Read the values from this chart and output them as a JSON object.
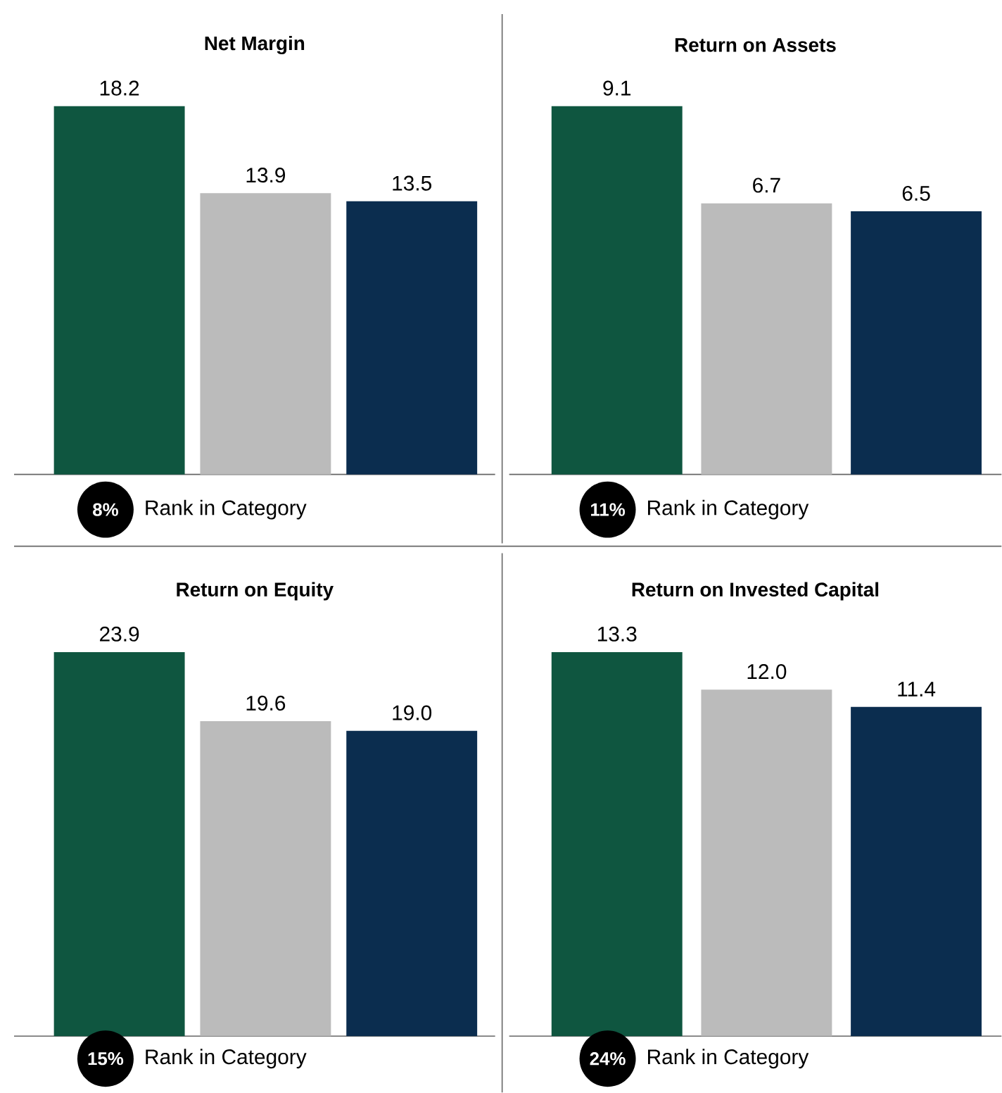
{
  "chart_data": [
    {
      "type": "bar",
      "title": "Net Margin",
      "categories": [
        null,
        null,
        null
      ],
      "values": [
        18.2,
        13.9,
        13.5
      ],
      "colors": [
        "#0f5640",
        "#bbbbbb",
        "#0b2d4f"
      ],
      "value_labels": [
        "18.2",
        "13.9",
        "13.5"
      ],
      "annotations": [
        "8%",
        "Rank in Category"
      ]
    },
    {
      "type": "bar",
      "title": "Return on Assets",
      "categories": [
        null,
        null,
        null
      ],
      "values": [
        9.1,
        6.7,
        6.5
      ],
      "colors": [
        "#0f5640",
        "#bbbbbb",
        "#0b2d4f"
      ],
      "value_labels": [
        "9.1",
        "6.7",
        "6.5"
      ],
      "annotations": [
        "11%",
        "Rank in Category"
      ]
    },
    {
      "type": "bar",
      "title": "Return on Equity",
      "categories": [
        null,
        null,
        null
      ],
      "values": [
        23.9,
        19.6,
        19.0
      ],
      "colors": [
        "#0f5640",
        "#bbbbbb",
        "#0b2d4f"
      ],
      "value_labels": [
        "23.9",
        "19.6",
        "19.0"
      ],
      "annotations": [
        "15%",
        "Rank in Category"
      ]
    },
    {
      "type": "bar",
      "title": "Return on Invested Capital",
      "categories": [
        null,
        null,
        null
      ],
      "values": [
        13.3,
        12.0,
        11.4
      ],
      "colors": [
        "#0f5640",
        "#bbbbbb",
        "#0b2d4f"
      ],
      "value_labels": [
        "13.3",
        "12.0",
        "11.4"
      ],
      "annotations": [
        "24%",
        "Rank in Category"
      ]
    }
  ]
}
